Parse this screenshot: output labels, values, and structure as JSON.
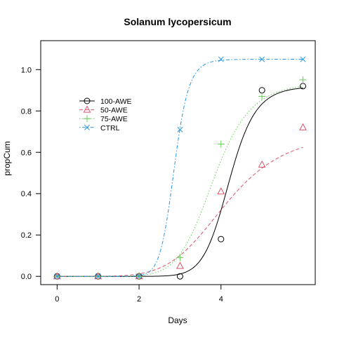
{
  "chart_data": {
    "type": "scatter",
    "title": "Solanum lycopersicum",
    "xlabel": "Days",
    "ylabel": "propCum",
    "xlim": [
      -0.4,
      6.3
    ],
    "ylim": [
      -0.04,
      1.14
    ],
    "x_ticks": [
      0,
      2,
      4
    ],
    "y_ticks": [
      0.0,
      0.2,
      0.4,
      0.6,
      0.8,
      1.0
    ],
    "x_tick_labels": [
      "0",
      "2",
      "4"
    ],
    "y_tick_labels": [
      "0.0",
      "0.2",
      "0.4",
      "0.6",
      "0.8",
      "1.0"
    ],
    "legend_position": "upper-left",
    "grid": false,
    "series": [
      {
        "name": "100-AWE",
        "color": "#000000",
        "marker": "circle",
        "line_style": "solid",
        "x": [
          0,
          1,
          2,
          3,
          4,
          5,
          6
        ],
        "y": [
          0.0,
          0.0,
          0.0,
          0.0,
          0.18,
          0.9,
          0.92
        ],
        "curve": {
          "d": 0.92,
          "e": 4.2,
          "b": 13
        }
      },
      {
        "name": "50-AWE",
        "color": "#df536b",
        "marker": "triangle",
        "line_style": "dashed",
        "x": [
          0,
          1,
          2,
          3,
          4,
          5,
          6
        ],
        "y": [
          0.0,
          0.0,
          0.0,
          0.05,
          0.41,
          0.54,
          0.72
        ],
        "curve": {
          "d": 0.7,
          "e": 4.12,
          "b": 5.6
        }
      },
      {
        "name": "75-AWE",
        "color": "#61d04f",
        "marker": "plus",
        "line_style": "dotted",
        "x": [
          0,
          1,
          2,
          3,
          4,
          5,
          6
        ],
        "y": [
          0.0,
          0.0,
          0.0,
          0.09,
          0.64,
          0.87,
          0.95
        ],
        "curve": {
          "d": 0.94,
          "e": 3.82,
          "b": 8.5
        }
      },
      {
        "name": "CTRL",
        "color": "#2297e6",
        "marker": "x",
        "line_style": "dotdash",
        "x": [
          0,
          1,
          2,
          3,
          4,
          5,
          6
        ],
        "y": [
          0.0,
          0.0,
          0.0,
          0.71,
          1.05,
          1.05,
          1.05
        ],
        "curve": {
          "d": 1.05,
          "e": 2.86,
          "b": 16
        }
      }
    ]
  }
}
